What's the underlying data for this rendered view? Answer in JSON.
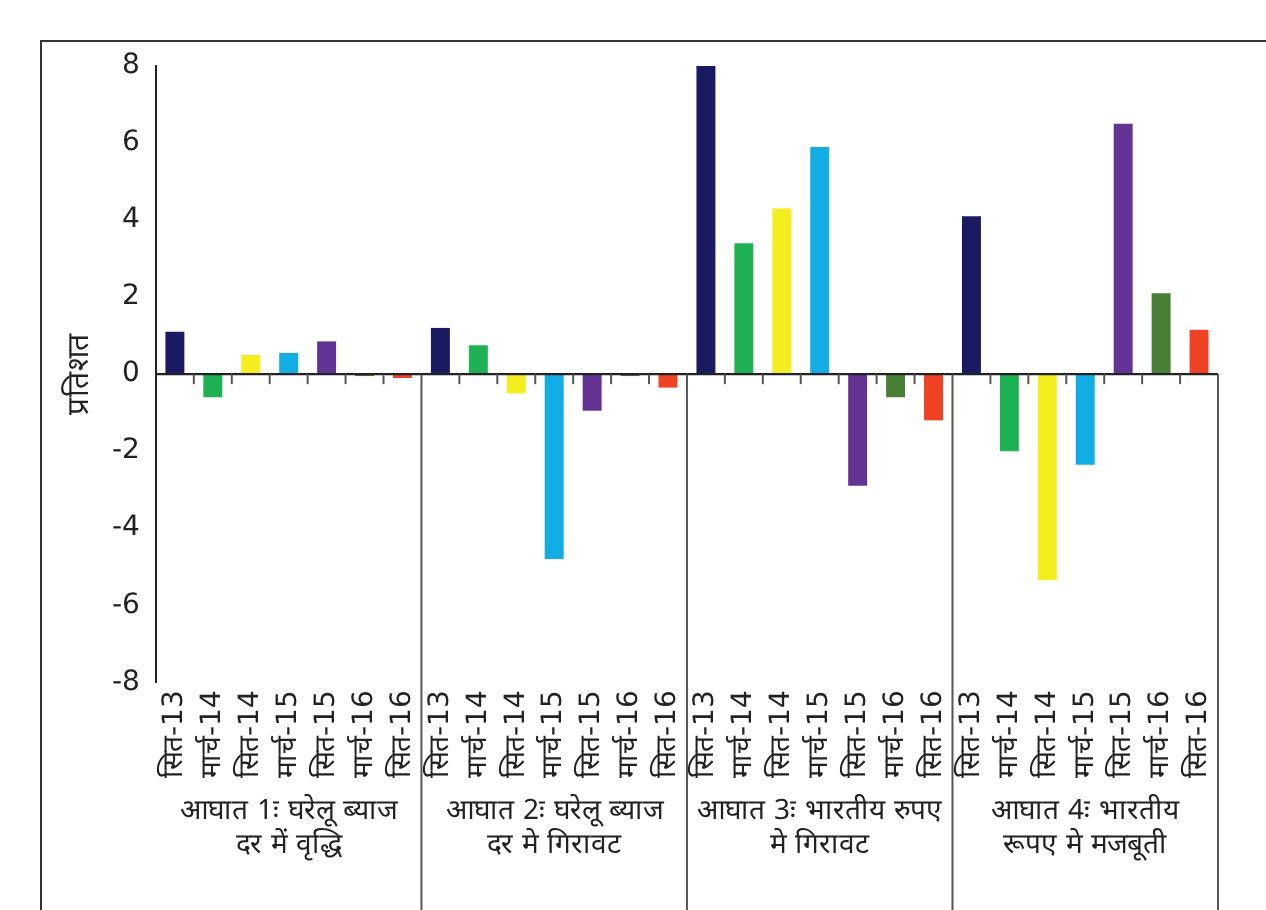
{
  "chart_data": {
    "type": "bar",
    "ylabel": "प्रतिशत",
    "categories": [
      "सित-13",
      "मार्च-14",
      "सित-14",
      "मार्च-15",
      "सित-15",
      "मार्च-16",
      "सित-16",
      "सित-13",
      "मार्च-14",
      "सित-14",
      "मार्च-15",
      "सित-15",
      "मार्च-16",
      "सित-16",
      "सित-13",
      "मार्च-14",
      "सित-14",
      "मार्च-15",
      "सित-15",
      "मार्च-16",
      "सित-16",
      "सित-13",
      "मार्च-14",
      "सित-14",
      "मार्च-15",
      "सित-15",
      "मार्च-16",
      "सित-16"
    ],
    "values": [
      1.1,
      -0.6,
      0.5,
      0.55,
      0.85,
      -0.05,
      -0.1,
      1.2,
      0.75,
      -0.5,
      -4.8,
      -0.95,
      -0.05,
      -0.35,
      8.0,
      3.4,
      4.3,
      5.9,
      -2.9,
      -0.6,
      -1.2,
      4.1,
      -2.0,
      -5.35,
      -2.35,
      6.5,
      2.1,
      1.15
    ],
    "colors": [
      "#1a1a63",
      "#1fb254",
      "#f5ee1e",
      "#12ade4",
      "#633394",
      "#497e35",
      "#f04325",
      "#1a1a63",
      "#1fb254",
      "#f5ee1e",
      "#12ade4",
      "#633394",
      "#497e35",
      "#f04325",
      "#1a1a63",
      "#1fb254",
      "#f5ee1e",
      "#12ade4",
      "#633394",
      "#497e35",
      "#f04325",
      "#1a1a63",
      "#1fb254",
      "#f5ee1e",
      "#12ade4",
      "#633394",
      "#497e35",
      "#f04325"
    ],
    "ylim": [
      -8,
      8
    ],
    "yticks": [
      -8,
      -6,
      -4,
      -2,
      0,
      2,
      4,
      6,
      8
    ],
    "grid": false,
    "legend": false,
    "annotations": [
      "आघात 1ः घरेलू ब्याज दर में वृद्धि",
      "आघात 2ः घरेलू ब्याज दर मे गिरावट",
      "आघात 3ः भारतीय रुपए मे गिरावट",
      "आघात 4ः भारतीय रूपए मे मजबूती"
    ]
  }
}
